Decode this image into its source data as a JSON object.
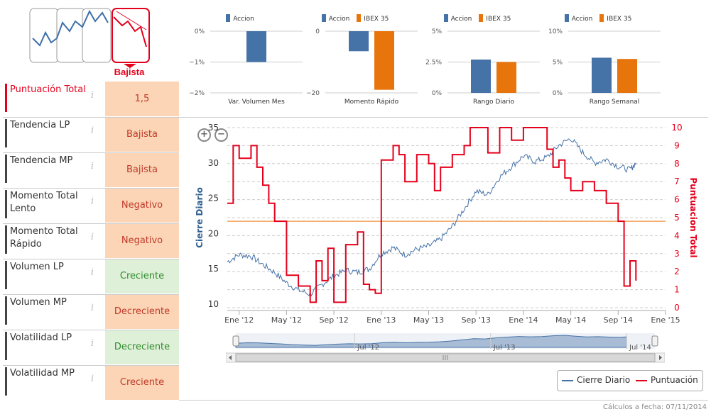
{
  "trend_icons": {
    "selected_label": "Bajista"
  },
  "rows": [
    {
      "label": "Puntuación Total",
      "value": "1,5",
      "style": "red",
      "bg": "orange"
    },
    {
      "label": "Tendencia LP",
      "value": "Bajista",
      "style": "dark",
      "bg": "orange"
    },
    {
      "label": "Tendencia MP",
      "value": "Bajista",
      "style": "dark",
      "bg": "orange"
    },
    {
      "label": "Momento Total Lento",
      "value": "Negativo",
      "style": "dark",
      "bg": "orange"
    },
    {
      "label": "Momento Total Rápido",
      "value": "Negativo",
      "style": "dark",
      "bg": "orange"
    },
    {
      "label": "Volumen LP",
      "value": "Creciente",
      "style": "dark",
      "bg": "green"
    },
    {
      "label": "Volumen MP",
      "value": "Decreciente",
      "style": "dark",
      "bg": "orange"
    },
    {
      "label": "Volatilidad LP",
      "value": "Decreciente",
      "style": "dark",
      "bg": "green"
    },
    {
      "label": "Volatilidad MP",
      "value": "Creciente",
      "style": "dark",
      "bg": "orange"
    }
  ],
  "info_glyph": "i",
  "colors": {
    "accion": "#4572a7",
    "ibex": "#e8750c",
    "score": "#e4001b",
    "threshold": "#f5a05a"
  },
  "chart_data": [
    {
      "type": "bar",
      "title": "Var. Volumen Mes",
      "series": [
        {
          "name": "Accion",
          "values": [
            -1.0
          ]
        }
      ],
      "yticks": [
        "0%",
        "−1%",
        "−2%"
      ],
      "ylim": [
        -2,
        0
      ]
    },
    {
      "type": "bar",
      "title": "Momento Rápido",
      "series": [
        {
          "name": "Accion",
          "values": [
            -6.5
          ]
        },
        {
          "name": "IBEX 35",
          "values": [
            -19
          ]
        }
      ],
      "yticks": [
        "0",
        "−20"
      ],
      "ylim": [
        -20,
        0
      ]
    },
    {
      "type": "bar",
      "title": "Rango Diario",
      "series": [
        {
          "name": "Accion",
          "values": [
            2.7
          ]
        },
        {
          "name": "IBEX 35",
          "values": [
            2.5
          ]
        }
      ],
      "yticks": [
        "5%",
        "2.5%",
        "0%"
      ],
      "ylim": [
        0,
        5
      ]
    },
    {
      "type": "bar",
      "title": "Rango Semanal",
      "series": [
        {
          "name": "Accion",
          "values": [
            5.7
          ]
        },
        {
          "name": "IBEX 35",
          "values": [
            5.5
          ]
        }
      ],
      "yticks": [
        "10%",
        "5%",
        "0%"
      ],
      "ylim": [
        0,
        10
      ]
    },
    {
      "type": "line",
      "title": "",
      "ylabel": "Cierre Diario",
      "y2label": "Puntuacion Total",
      "ylim": [
        9.5,
        35
      ],
      "y2lim": [
        0,
        10
      ],
      "yticks": [
        "35",
        "30",
        "25",
        "20",
        "15",
        "10"
      ],
      "y2ticks": [
        "10",
        "9",
        "8",
        "7",
        "6",
        "5",
        "4",
        "3",
        "2",
        "1",
        "0"
      ],
      "xticks": [
        "Ene '12",
        "May '12",
        "Sep '12",
        "Ene '13",
        "May '13",
        "Sep '13",
        "Ene '14",
        "May '14",
        "Sep '14",
        "Ene '15"
      ],
      "xlim": [
        0,
        37
      ],
      "threshold_score": 4.8,
      "series": [
        {
          "name": "Cierre Diario",
          "x": [
            0,
            1,
            2,
            3,
            4,
            5,
            6,
            7,
            8,
            9,
            10,
            11,
            12,
            13,
            14,
            15,
            16,
            17,
            18,
            19,
            20,
            21,
            22,
            23,
            24,
            25,
            26,
            27,
            28,
            29,
            30,
            31,
            32,
            33,
            34,
            34.5
          ],
          "values": [
            16.0,
            17.0,
            16.8,
            15.6,
            14.5,
            13.0,
            12.0,
            11.4,
            12.8,
            14.0,
            14.8,
            14.5,
            15.0,
            17.2,
            18.0,
            17.0,
            17.8,
            18.2,
            19.2,
            21.0,
            23.5,
            26.0,
            25.5,
            28.0,
            29.5,
            31.0,
            30.2,
            30.8,
            32.5,
            33.5,
            31.5,
            30.0,
            30.5,
            29.5,
            29.0,
            30.0
          ]
        },
        {
          "name": "Puntuación",
          "x": [
            0,
            0.5,
            1,
            2,
            2.5,
            3,
            3.5,
            4,
            5,
            6,
            7,
            7.5,
            8,
            8.5,
            9,
            10,
            11,
            11.5,
            12,
            12.5,
            13,
            14,
            14.5,
            15,
            16,
            17,
            17.5,
            18,
            19,
            20,
            20.5,
            21,
            22,
            23,
            24,
            25,
            26,
            27,
            27.5,
            28,
            28.5,
            29,
            30,
            31,
            32,
            33,
            33.5,
            34,
            34.5
          ],
          "values": [
            5.8,
            9.0,
            8.3,
            9.0,
            7.8,
            6.8,
            5.8,
            4.8,
            1.8,
            1.2,
            0.3,
            2.6,
            1.5,
            3.3,
            0.3,
            3.5,
            4.2,
            1.3,
            1.0,
            0.8,
            8.2,
            9.0,
            8.5,
            7.0,
            8.5,
            8.0,
            6.5,
            7.8,
            8.5,
            9.0,
            10.0,
            10.0,
            8.6,
            10.0,
            9.3,
            10.0,
            10.0,
            8.8,
            7.8,
            8.2,
            7.2,
            6.5,
            7.0,
            6.5,
            5.8,
            4.8,
            1.2,
            2.6,
            1.5
          ]
        }
      ]
    }
  ],
  "zoom": {
    "in": "+",
    "out": "−"
  },
  "navigator": {
    "labels": [
      "Jul '12",
      "Jul '13",
      "Jul '14"
    ]
  },
  "legend": {
    "items": [
      "Cierre Diario",
      "Puntuación"
    ]
  },
  "footer": {
    "text": "Cálculos a fecha: 07/11/2014"
  }
}
